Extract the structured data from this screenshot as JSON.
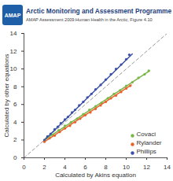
{
  "header": {
    "logo_text": "AMAP",
    "title": "Arctic Monitoring and Assessment Programme",
    "subtitle": "AMAP Assessment 2009:Human Health in the Arctic, Figure 4.10"
  },
  "chart_data": {
    "type": "scatter",
    "xlabel": "Calculated by Akins equation",
    "ylabel": "Calculated by other equations",
    "xlim": [
      0,
      14
    ],
    "ylim": [
      0,
      14
    ],
    "xticks": [
      0,
      2,
      4,
      6,
      8,
      10,
      12,
      14
    ],
    "yticks": [
      0,
      2,
      4,
      6,
      8,
      10,
      12,
      14
    ],
    "grid": false,
    "legend": "bottom-right",
    "reference_line": {
      "x": [
        0,
        14
      ],
      "values": [
        0,
        14
      ],
      "line_style": "dashed"
    },
    "series": [
      {
        "name": "Covaci",
        "color": "#7ab648",
        "marker": "circle",
        "x": [
          2.2,
          2.8,
          3.4,
          4.0,
          4.6,
          5.2,
          5.8,
          6.4,
          7.0,
          7.6,
          8.2,
          8.8,
          9.4,
          10.0,
          10.6,
          11.2,
          11.8,
          12.2
        ],
        "values": [
          2.2,
          2.6,
          3.1,
          3.6,
          4.0,
          4.4,
          4.9,
          5.4,
          5.8,
          6.2,
          6.7,
          7.2,
          7.6,
          8.1,
          8.5,
          9.0,
          9.4,
          9.8
        ],
        "fit": {
          "x": [
            2.0,
            12.3
          ],
          "values": [
            2.0,
            9.8
          ]
        }
      },
      {
        "name": "Rylander",
        "color": "#e8632b",
        "marker": "circle",
        "x": [
          2.0,
          2.5,
          3.0,
          3.5,
          4.0,
          4.5,
          5.0,
          5.5,
          6.0,
          6.5,
          7.0,
          7.5,
          8.0,
          8.5,
          9.0,
          9.5,
          10.0,
          10.4
        ],
        "values": [
          1.8,
          2.2,
          2.5,
          2.9,
          3.3,
          3.6,
          4.0,
          4.4,
          4.8,
          5.1,
          5.5,
          5.9,
          6.3,
          6.7,
          7.0,
          7.4,
          7.8,
          8.1
        ],
        "fit": {
          "x": [
            2.0,
            10.5
          ],
          "values": [
            1.8,
            8.2
          ]
        }
      },
      {
        "name": "Phillips",
        "color": "#3a4fa8",
        "marker": "circle",
        "x": [
          2.0,
          2.3,
          2.6,
          3.0,
          3.3,
          3.6,
          4.0,
          4.3,
          4.7,
          5.0,
          5.4,
          5.8,
          6.2,
          6.6,
          7.0,
          7.5,
          8.0,
          8.5,
          9.0,
          9.5,
          10.0,
          10.3
        ],
        "values": [
          2.0,
          2.4,
          2.7,
          3.2,
          3.5,
          3.9,
          4.3,
          4.6,
          5.1,
          5.4,
          5.9,
          6.3,
          6.8,
          7.2,
          7.7,
          8.2,
          8.8,
          9.4,
          10.0,
          10.5,
          11.1,
          11.6
        ],
        "fit": {
          "x": [
            2.0,
            10.6
          ],
          "values": [
            2.0,
            11.7
          ]
        }
      }
    ]
  }
}
